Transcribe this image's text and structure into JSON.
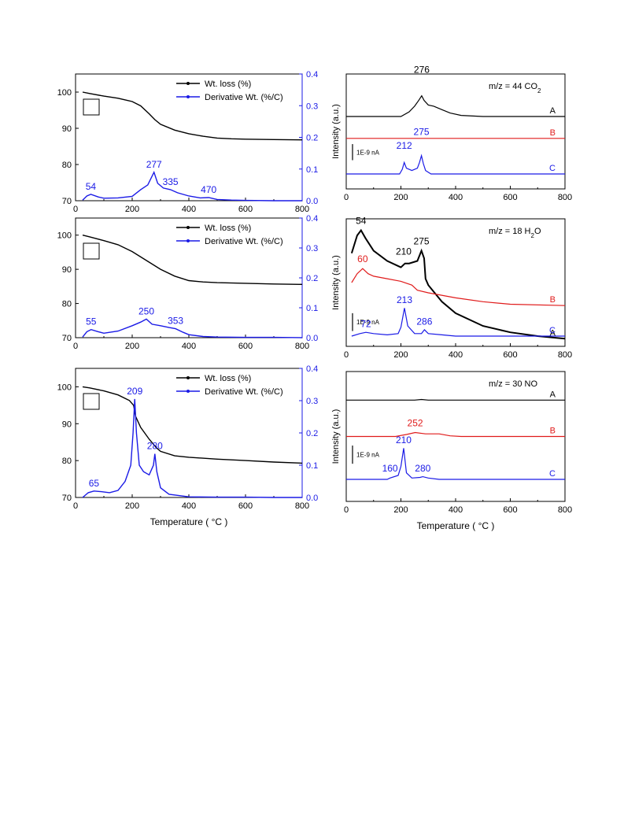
{
  "colors": {
    "black": "#000000",
    "blue": "#1a1ae6",
    "red": "#e01b1b"
  },
  "chart_data": [
    {
      "id": "tga1",
      "type": "line",
      "xlim": [
        0,
        800
      ],
      "ylim": [
        70,
        105
      ],
      "y2lim": [
        0,
        0.4
      ],
      "xticks": [
        0,
        200,
        400,
        600,
        800
      ],
      "yticks": [
        70,
        80,
        90,
        100
      ],
      "y2ticks": [
        "0.0",
        "0.1",
        "0.2",
        "0.3",
        "0.4"
      ],
      "xlabel": "",
      "legend": [
        "Wt. loss (%)",
        "Derivative Wt. (%/C)"
      ],
      "series": [
        {
          "name": "Wt. loss (%)",
          "axis": "left",
          "color": "#000000",
          "x": [
            25,
            50,
            100,
            150,
            200,
            230,
            260,
            280,
            300,
            350,
            400,
            450,
            500,
            550,
            600,
            700,
            800
          ],
          "y": [
            100,
            99.6,
            98.9,
            98.3,
            97.4,
            96.2,
            94,
            92.4,
            91.1,
            89.5,
            88.5,
            87.8,
            87.3,
            87.1,
            87,
            86.9,
            86.8
          ]
        },
        {
          "name": "Derivative Wt. (%/C)",
          "axis": "right",
          "color": "#1a1ae6",
          "x": [
            25,
            40,
            54,
            80,
            100,
            150,
            200,
            230,
            255,
            277,
            290,
            310,
            335,
            360,
            400,
            440,
            470,
            500,
            550,
            600,
            700,
            800
          ],
          "y": [
            0.002,
            0.015,
            0.02,
            0.012,
            0.008,
            0.009,
            0.014,
            0.035,
            0.05,
            0.09,
            0.055,
            0.04,
            0.035,
            0.025,
            0.015,
            0.009,
            0.01,
            0.004,
            0.002,
            0.001,
            0.0,
            0.0
          ]
        }
      ],
      "annotations": [
        {
          "text": "54",
          "x": 54,
          "y": 0.02
        },
        {
          "text": "277",
          "x": 277,
          "y": 0.09
        },
        {
          "text": "335",
          "x": 335,
          "y": 0.035
        },
        {
          "text": "470",
          "x": 470,
          "y": 0.01
        }
      ]
    },
    {
      "id": "tga2",
      "type": "line",
      "xlim": [
        0,
        800
      ],
      "ylim": [
        70,
        105
      ],
      "y2lim": [
        0,
        0.4
      ],
      "xticks": [
        0,
        200,
        400,
        600,
        800
      ],
      "yticks": [
        70,
        80,
        90,
        100
      ],
      "y2ticks": [
        "0.0",
        "0.1",
        "0.2",
        "0.3",
        "0.4"
      ],
      "xlabel": "",
      "legend": [
        "Wt. loss (%)",
        "Derivative Wt. (%/C)"
      ],
      "series": [
        {
          "name": "Wt. loss (%)",
          "axis": "left",
          "color": "#000000",
          "x": [
            25,
            50,
            100,
            150,
            200,
            250,
            300,
            350,
            400,
            450,
            500,
            600,
            700,
            800
          ],
          "y": [
            100,
            99.5,
            98.4,
            97.2,
            95.2,
            92.6,
            90,
            88,
            86.7,
            86.3,
            86.1,
            85.9,
            85.7,
            85.6
          ]
        },
        {
          "name": "Derivative Wt. (%/C)",
          "axis": "right",
          "color": "#1a1ae6",
          "x": [
            25,
            40,
            55,
            80,
            100,
            150,
            200,
            230,
            250,
            270,
            300,
            330,
            353,
            380,
            400,
            450,
            500,
            600,
            700,
            800
          ],
          "y": [
            0.002,
            0.02,
            0.027,
            0.02,
            0.015,
            0.022,
            0.04,
            0.052,
            0.062,
            0.045,
            0.04,
            0.034,
            0.03,
            0.018,
            0.01,
            0.004,
            0.002,
            0.001,
            0.001,
            0.0
          ]
        }
      ],
      "annotations": [
        {
          "text": "55",
          "x": 55,
          "y": 0.027
        },
        {
          "text": "250",
          "x": 250,
          "y": 0.062
        },
        {
          "text": "353",
          "x": 353,
          "y": 0.03
        }
      ]
    },
    {
      "id": "tga3",
      "type": "line",
      "xlim": [
        0,
        800
      ],
      "ylim": [
        70,
        105
      ],
      "y2lim": [
        0,
        0.4
      ],
      "xticks": [
        0,
        200,
        400,
        600,
        800
      ],
      "yticks": [
        70,
        80,
        90,
        100
      ],
      "y2ticks": [
        "0.0",
        "0.1",
        "0.2",
        "0.3",
        "0.4"
      ],
      "xlabel": "Temperature (  °C )",
      "legend": [
        "Wt. loss (%)",
        "Derivative Wt. (%/C)"
      ],
      "series": [
        {
          "name": "Wt. loss (%)",
          "axis": "right-hidden-left",
          "color": "#000000",
          "axisSide": "left",
          "x": [
            25,
            50,
            100,
            150,
            190,
            205,
            212,
            230,
            260,
            285,
            300,
            350,
            400,
            500,
            600,
            700,
            800
          ],
          "y": [
            100,
            99.7,
            98.9,
            97.8,
            96.3,
            95,
            92,
            89,
            85.8,
            83.5,
            82.5,
            81.3,
            80.9,
            80.4,
            80,
            79.6,
            79.3
          ]
        },
        {
          "name": "Derivative Wt. (%/C)",
          "axis": "right",
          "color": "#1a1ae6",
          "x": [
            25,
            45,
            65,
            90,
            120,
            150,
            175,
            195,
            203,
            209,
            215,
            225,
            240,
            260,
            275,
            280,
            287,
            300,
            330,
            400,
            500,
            600,
            700,
            800
          ],
          "y": [
            0.0,
            0.015,
            0.02,
            0.018,
            0.015,
            0.022,
            0.05,
            0.1,
            0.2,
            0.305,
            0.2,
            0.1,
            0.08,
            0.07,
            0.1,
            0.135,
            0.08,
            0.03,
            0.01,
            0.002,
            0.001,
            0.001,
            0.0,
            0.0
          ]
        }
      ],
      "annotations": [
        {
          "text": "65",
          "x": 65,
          "y": 0.02
        },
        {
          "text": "209",
          "x": 209,
          "y": 0.305
        },
        {
          "text": "280",
          "x": 280,
          "y": 0.135
        }
      ]
    },
    {
      "id": "ms1",
      "type": "line",
      "title": "m/z = 44  CO",
      "title_sub": "2",
      "xlim": [
        0,
        800
      ],
      "xticks": [
        0,
        200,
        400,
        600,
        800
      ],
      "ylabel": "Intensity (a.u.)",
      "xlabel": "",
      "scale_bar": "1E-9 nA",
      "series": [
        {
          "name": "A",
          "color": "#000000",
          "base": 0.63,
          "x": [
            0,
            200,
            230,
            250,
            265,
            276,
            285,
            300,
            320,
            350,
            380,
            420,
            500,
            600,
            800
          ],
          "y": [
            0,
            0,
            0.04,
            0.09,
            0.14,
            0.18,
            0.14,
            0.1,
            0.09,
            0.06,
            0.03,
            0.01,
            0.0,
            0.0,
            0
          ]
        },
        {
          "name": "B",
          "color": "#e01b1b",
          "base": 0.44,
          "x": [
            0,
            800
          ],
          "y": [
            0,
            0
          ]
        },
        {
          "name": "C",
          "color": "#1a1ae6",
          "base": 0.13,
          "x": [
            0,
            195,
            205,
            212,
            220,
            240,
            260,
            268,
            275,
            282,
            290,
            310,
            400,
            800
          ],
          "y": [
            0,
            0,
            0.04,
            0.1,
            0.05,
            0.03,
            0.05,
            0.1,
            0.16,
            0.09,
            0.03,
            0.0,
            0,
            0
          ]
        }
      ],
      "annotations": [
        {
          "text": "276",
          "x": 276,
          "series": "A",
          "dy": 0.2,
          "color": "#000000"
        },
        {
          "text": "212",
          "x": 212,
          "series": "C",
          "dy": 0.12,
          "color": "#1a1ae6"
        },
        {
          "text": "275",
          "x": 275,
          "series": "C",
          "dy": 0.18,
          "color": "#1a1ae6"
        }
      ]
    },
    {
      "id": "ms2",
      "type": "line",
      "title": "m/z = 18  H",
      "title_sub": "2",
      "title_tail": "O",
      "xlim": [
        0,
        800
      ],
      "xticks": [
        0,
        200,
        400,
        600,
        800
      ],
      "ylabel": "Intensity (a.u.)",
      "xlabel": "",
      "scale_bar": "1E-9 nA",
      "series": [
        {
          "name": "A",
          "color": "#000000",
          "base": 0.05,
          "thick": true,
          "x": [
            20,
            40,
            54,
            70,
            100,
            150,
            200,
            215,
            230,
            260,
            275,
            285,
            290,
            300,
            350,
            400,
            500,
            600,
            700,
            800
          ],
          "y": [
            0.68,
            0.82,
            0.86,
            0.8,
            0.7,
            0.62,
            0.57,
            0.6,
            0.6,
            0.62,
            0.7,
            0.64,
            0.48,
            0.43,
            0.3,
            0.21,
            0.11,
            0.06,
            0.03,
            0.01
          ]
        },
        {
          "name": "B",
          "color": "#e01b1b",
          "base": 0.0,
          "x": [
            20,
            40,
            60,
            80,
            100,
            150,
            200,
            240,
            260,
            300,
            400,
            500,
            600,
            800
          ],
          "y": [
            0.5,
            0.57,
            0.61,
            0.57,
            0.55,
            0.53,
            0.51,
            0.48,
            0.44,
            0.42,
            0.38,
            0.35,
            0.33,
            0.32
          ]
        },
        {
          "name": "C",
          "color": "#1a1ae6",
          "base": 0.0,
          "x": [
            20,
            50,
            72,
            100,
            150,
            190,
            200,
            213,
            225,
            250,
            275,
            286,
            300,
            350,
            400,
            500,
            800
          ],
          "y": [
            0.08,
            0.1,
            0.11,
            0.1,
            0.09,
            0.1,
            0.15,
            0.3,
            0.16,
            0.1,
            0.1,
            0.13,
            0.1,
            0.09,
            0.08,
            0.08,
            0.08
          ]
        }
      ],
      "annotations": [
        {
          "text": "54",
          "x": 54,
          "series": "A",
          "dy": 0.05,
          "color": "#000000"
        },
        {
          "text": "210",
          "x": 210,
          "series": "A",
          "dy": 0.08,
          "color": "#000000"
        },
        {
          "text": "275",
          "x": 275,
          "series": "A",
          "dy": 0.05,
          "color": "#000000"
        },
        {
          "text": "60",
          "x": 60,
          "series": "B",
          "dy": 0.05,
          "color": "#e01b1b"
        },
        {
          "text": "213",
          "x": 213,
          "series": "C",
          "dy": 0.04,
          "color": "#1a1ae6"
        },
        {
          "text": "72",
          "x": 72,
          "series": "C",
          "dy": 0.04,
          "color": "#1a1ae6"
        },
        {
          "text": "286",
          "x": 286,
          "series": "C",
          "dy": 0.04,
          "color": "#1a1ae6"
        }
      ]
    },
    {
      "id": "ms3",
      "type": "line",
      "title": "m/z = 30  NO",
      "xlim": [
        0,
        800
      ],
      "xticks": [
        0,
        200,
        400,
        600,
        800
      ],
      "ylabel": "Intensity (a.u.)",
      "xlabel": "Temperature (  °C )",
      "scale_bar": "1E-9 nA",
      "series": [
        {
          "name": "A",
          "color": "#000000",
          "base": 0.78,
          "x": [
            0,
            250,
            275,
            300,
            800
          ],
          "y": [
            0,
            0,
            0.005,
            0,
            0
          ]
        },
        {
          "name": "B",
          "color": "#e01b1b",
          "base": 0.5,
          "x": [
            0,
            180,
            220,
            252,
            290,
            340,
            380,
            420,
            800
          ],
          "y": [
            0,
            0,
            0.015,
            0.03,
            0.02,
            0.02,
            0.005,
            0,
            0
          ]
        },
        {
          "name": "C",
          "color": "#1a1ae6",
          "base": 0.17,
          "x": [
            0,
            150,
            160,
            190,
            200,
            210,
            220,
            240,
            270,
            280,
            300,
            340,
            800
          ],
          "y": [
            0,
            0,
            0.01,
            0.03,
            0.1,
            0.24,
            0.05,
            0.01,
            0.015,
            0.02,
            0.01,
            0,
            0
          ]
        }
      ],
      "annotations": [
        {
          "text": "252",
          "x": 252,
          "series": "B",
          "dy": 0.05,
          "color": "#e01b1b"
        },
        {
          "text": "210",
          "x": 210,
          "series": "C",
          "dy": 0.04,
          "color": "#1a1ae6"
        },
        {
          "text": "160",
          "x": 160,
          "series": "C",
          "dy": 0.05,
          "color": "#1a1ae6"
        },
        {
          "text": "280",
          "x": 280,
          "series": "C",
          "dy": 0.04,
          "color": "#1a1ae6"
        }
      ]
    }
  ]
}
